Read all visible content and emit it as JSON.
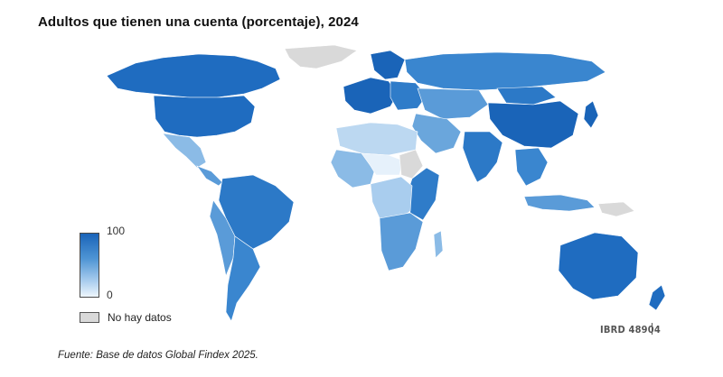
{
  "title": "Adultos que tienen una cuenta (porcentaje), 2024",
  "legend": {
    "max_label": "100",
    "min_label": "0",
    "no_data_label": "No hay datos",
    "color_high": "#1a64b8",
    "color_low": "#eef6fd",
    "color_no_data": "#d9d9d9"
  },
  "map_id": "IBRD 48904",
  "source": "Fuente: Base de datos Global Findex 2025."
}
